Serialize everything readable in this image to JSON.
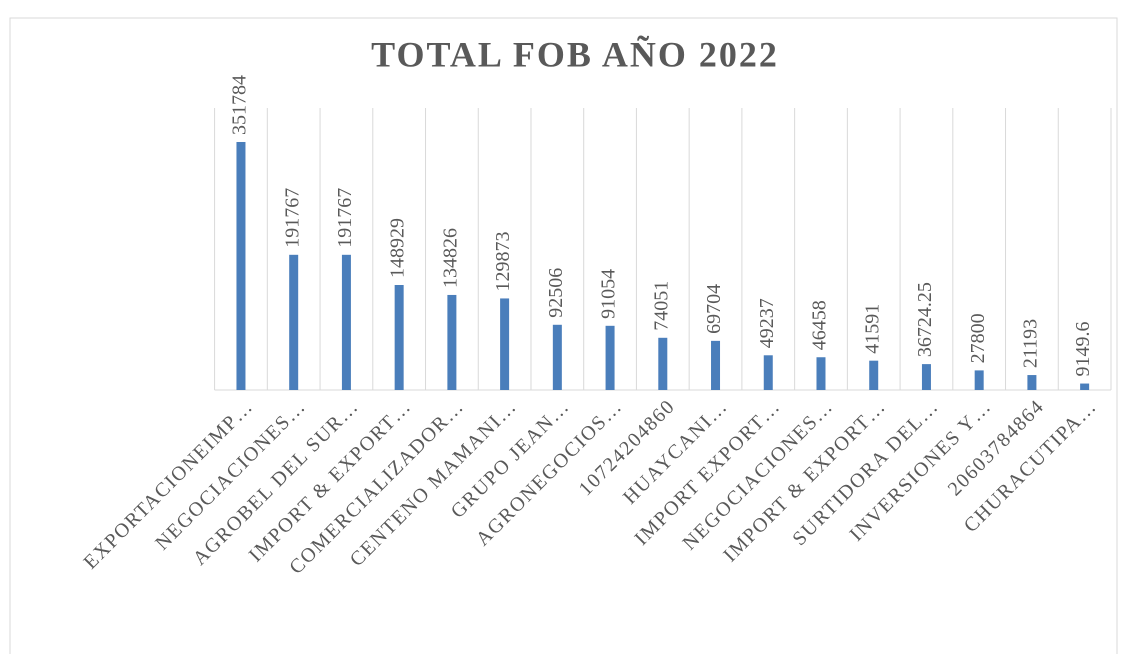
{
  "chart_data": {
    "type": "bar",
    "title": "TOTAL FOB AÑO 2022",
    "categories": [
      "EXPORTACIONEIMP…",
      "NEGOCIACIONES…",
      "AGROBEL DEL SUR…",
      "IMPORT & EXPORT…",
      "COMERCIALIZADOR…",
      "CENTENO MAMANI…",
      "GRUPO JEAN…",
      "AGRONEGOCIOS…",
      "10724204860",
      "HUAYCANI…",
      "IMPORT EXPORT…",
      "NEGOCIACIONES…",
      "IMPORT & EXPORT…",
      "SURTIDORA DEL…",
      "INVERSIONES Y…",
      "20603784864",
      "CHURACUTIPA…"
    ],
    "values": [
      351784,
      191767,
      191767,
      148929,
      134826,
      129873,
      92506,
      91054,
      74051,
      69704,
      49237,
      46458,
      41591,
      36724.25,
      27800,
      21193,
      9149.6
    ],
    "color": "#4a7ebb",
    "ylim": [
      0,
      400000
    ]
  }
}
